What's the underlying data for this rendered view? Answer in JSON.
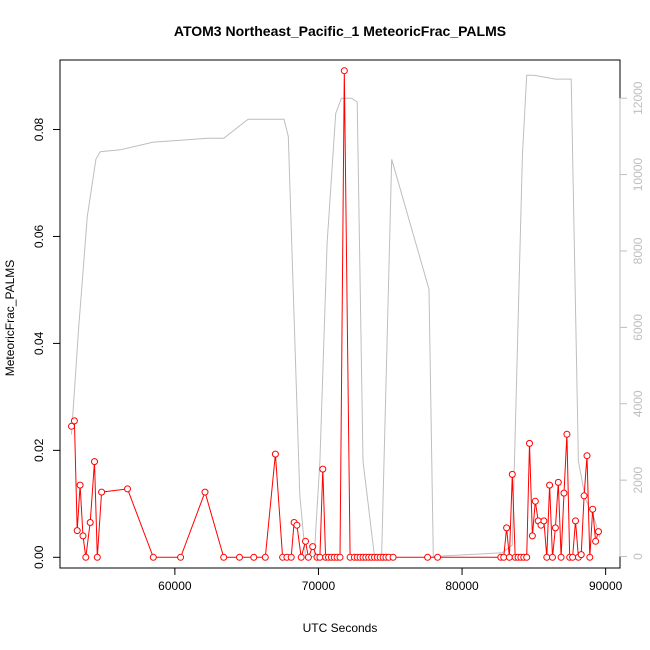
{
  "chart_data": {
    "type": "line",
    "title": "ATOM3 Northeast_Pacific_1 MeteoricFrac_PALMS",
    "xlabel": "UTC Seconds",
    "ylabel": "MeteoricFrac_PALMS",
    "ylabel_right": "",
    "xlim": [
      52000,
      91000
    ],
    "ylim": [
      -0.002,
      0.093
    ],
    "ylim_right": [
      -300,
      13000
    ],
    "x_ticks": [
      60000,
      70000,
      80000,
      90000
    ],
    "y_ticks": [
      0.0,
      0.02,
      0.04,
      0.06,
      0.08
    ],
    "y_tick_labels": [
      "0.00",
      "0.02",
      "0.04",
      "0.06",
      "0.08"
    ],
    "y_ticks_right": [
      0,
      2000,
      4000,
      6000,
      8000,
      10000,
      12000
    ],
    "grid": false,
    "colors": {
      "primary": "#ff0000",
      "secondary": "#bebebe",
      "axis": "#000000"
    },
    "series": [
      {
        "role": "primary",
        "axis": "left",
        "style": "line+open-circle",
        "color": "#ff0000",
        "x": [
          52800,
          53000,
          53200,
          53400,
          53600,
          53800,
          54100,
          54400,
          54600,
          54900,
          56700,
          58500,
          60400,
          62100,
          63400,
          64500,
          65500,
          66300,
          67000,
          67500,
          67800,
          68100,
          68300,
          68500,
          68800,
          69100,
          69300,
          69600,
          69900,
          70100,
          70300,
          70500,
          70700,
          70900,
          71100,
          71300,
          71500,
          71800,
          72200,
          72500,
          72700,
          72900,
          73100,
          73300,
          73500,
          73700,
          73900,
          74100,
          74300,
          74500,
          74700,
          74900,
          75200,
          77600,
          78300,
          82700,
          82900,
          83100,
          83300,
          83500,
          83700,
          83900,
          84100,
          84300,
          84500,
          84700,
          84900,
          85100,
          85300,
          85500,
          85700,
          85900,
          86100,
          86300,
          86500,
          86700,
          86900,
          87100,
          87300,
          87500,
          87700,
          87900,
          88100,
          88300,
          88500,
          88700,
          88900,
          89100,
          89300,
          89500
        ],
        "y": [
          0.0245,
          0.0255,
          0.005,
          0.0135,
          0.004,
          0.0,
          0.0065,
          0.0179,
          0.0,
          0.0122,
          0.0128,
          0.0,
          0.0,
          0.0122,
          0.0,
          0.0,
          0.0,
          0.0,
          0.0193,
          0.0,
          0.0,
          0.0,
          0.0065,
          0.006,
          0.0,
          0.003,
          0.0,
          0.002,
          0.0,
          0.0,
          0.0165,
          0.0,
          0.0,
          0.0,
          0.0,
          0.0,
          0.0,
          0.091,
          0.0,
          0.0,
          0.0,
          0.0,
          0.0,
          0.0,
          0.0,
          0.0,
          0.0,
          0.0,
          0.0,
          0.0,
          0.0,
          0.0,
          0.0,
          0.0,
          0.0,
          0.0,
          0.0,
          0.0055,
          0.0,
          0.0155,
          0.0,
          0.0,
          0.0,
          0.0,
          0.0,
          0.0213,
          0.004,
          0.0105,
          0.0068,
          0.006,
          0.0068,
          0.0,
          0.0135,
          0.0,
          0.0055,
          0.014,
          0.0,
          0.012,
          0.023,
          0.0,
          0.0,
          0.0068,
          0.0,
          0.0005,
          0.0115,
          0.019,
          0.0,
          0.009,
          0.003,
          0.0048
        ]
      },
      {
        "role": "secondary",
        "axis": "right",
        "style": "line",
        "color": "#bebebe",
        "x": [
          52800,
          53300,
          53900,
          54500,
          54800,
          56200,
          58500,
          60400,
          62300,
          63400,
          65100,
          66800,
          67600,
          67900,
          68700,
          69100,
          69700,
          70100,
          70600,
          71200,
          71600,
          72300,
          72700,
          73100,
          73900,
          74400,
          75100,
          77700,
          78000,
          82800,
          83500,
          84200,
          84500,
          85000,
          86500,
          87400,
          87600,
          88100,
          88600,
          89200,
          89600
        ],
        "y": [
          3200,
          6000,
          8900,
          10400,
          10600,
          10650,
          10850,
          10900,
          10950,
          10950,
          11450,
          11450,
          11450,
          11000,
          1600,
          0,
          0,
          2500,
          8200,
          11600,
          12000,
          12000,
          11900,
          2500,
          0,
          0,
          10400,
          7000,
          0,
          100,
          300,
          10500,
          12600,
          12600,
          12500,
          12500,
          12500,
          2500,
          1500,
          1000,
          500
        ]
      }
    ]
  }
}
